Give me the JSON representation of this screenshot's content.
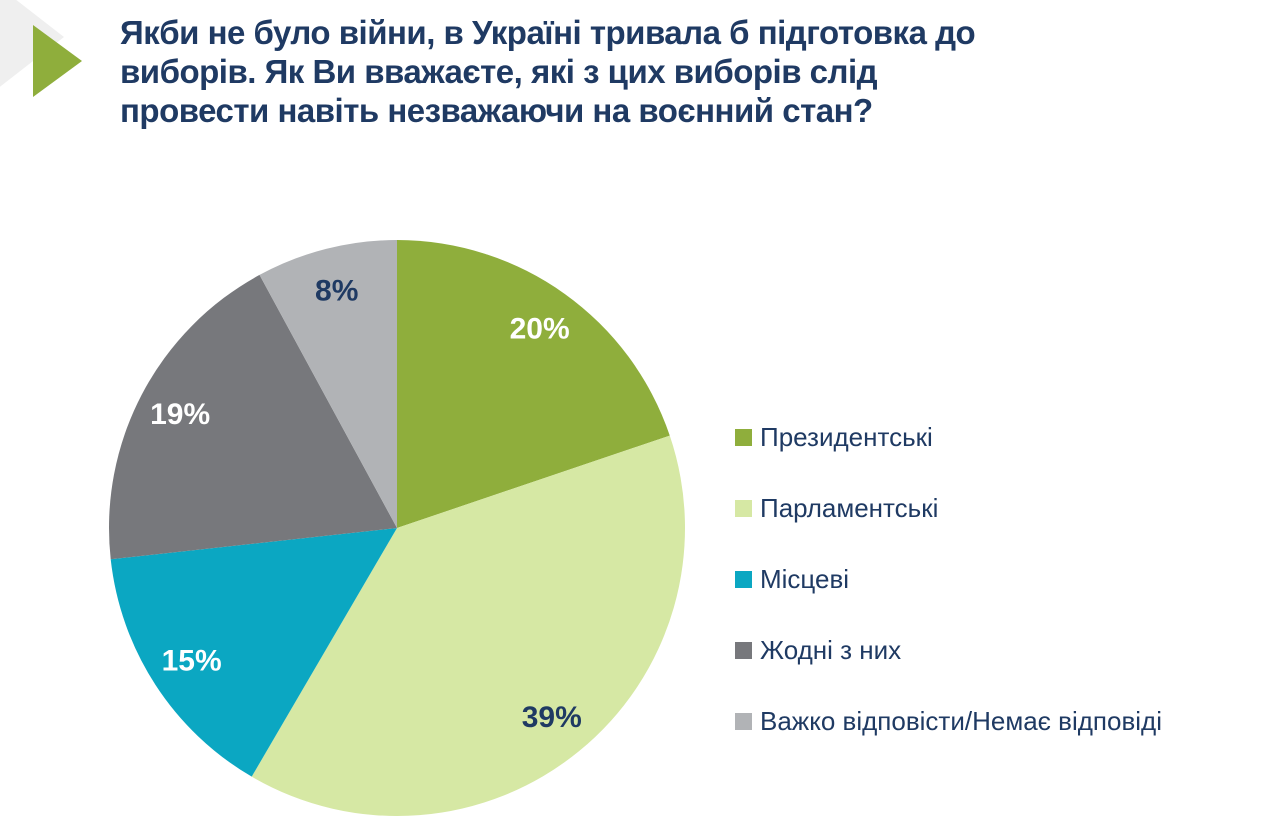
{
  "page": {
    "background": "#FFFFFF"
  },
  "decor": {
    "arrow_color": "#8FAE3C",
    "shadow_color": "#EFEFEF"
  },
  "colors": {
    "title_text": "#1F3A63",
    "label_on_dark": "#FFFFFF",
    "label_on_light": "#1F3A63"
  },
  "title_lines": [
    "Якби не було війни, в Україні тривала б підготовка до",
    "виборів. Як Ви вважаєте, які з цих виборів слід",
    "провести навіть незважаючи на воєнний стан?"
  ],
  "chart_data": {
    "type": "pie",
    "title": "Якби не було війни, в Україні тривала б підготовка до виборів. Як Ви вважаєте, які з цих виборів слід провести навіть незважаючи на воєнний стан?",
    "legend_position": "right",
    "start_angle_deg": 0,
    "direction": "clockwise",
    "values_unit": "%",
    "slices": [
      {
        "label": "Президентські",
        "value": 20,
        "display": "20%",
        "color": "#8FAE3C",
        "label_color": "#FFFFFF"
      },
      {
        "label": "Парламентські",
        "value": 39,
        "display": "39%",
        "color": "#D6E8A4",
        "label_color": "#1F3A63"
      },
      {
        "label": "Місцеві",
        "value": 15,
        "display": "15%",
        "color": "#0BA7C2",
        "label_color": "#FFFFFF"
      },
      {
        "label": "Жодні з них",
        "value": 19,
        "display": "19%",
        "color": "#77787C",
        "label_color": "#FFFFFF"
      },
      {
        "label": "Важко відповісти/Немає відповіді",
        "value": 8,
        "display": "8%",
        "color": "#B1B3B6",
        "label_color": "#1F3A63"
      }
    ]
  }
}
